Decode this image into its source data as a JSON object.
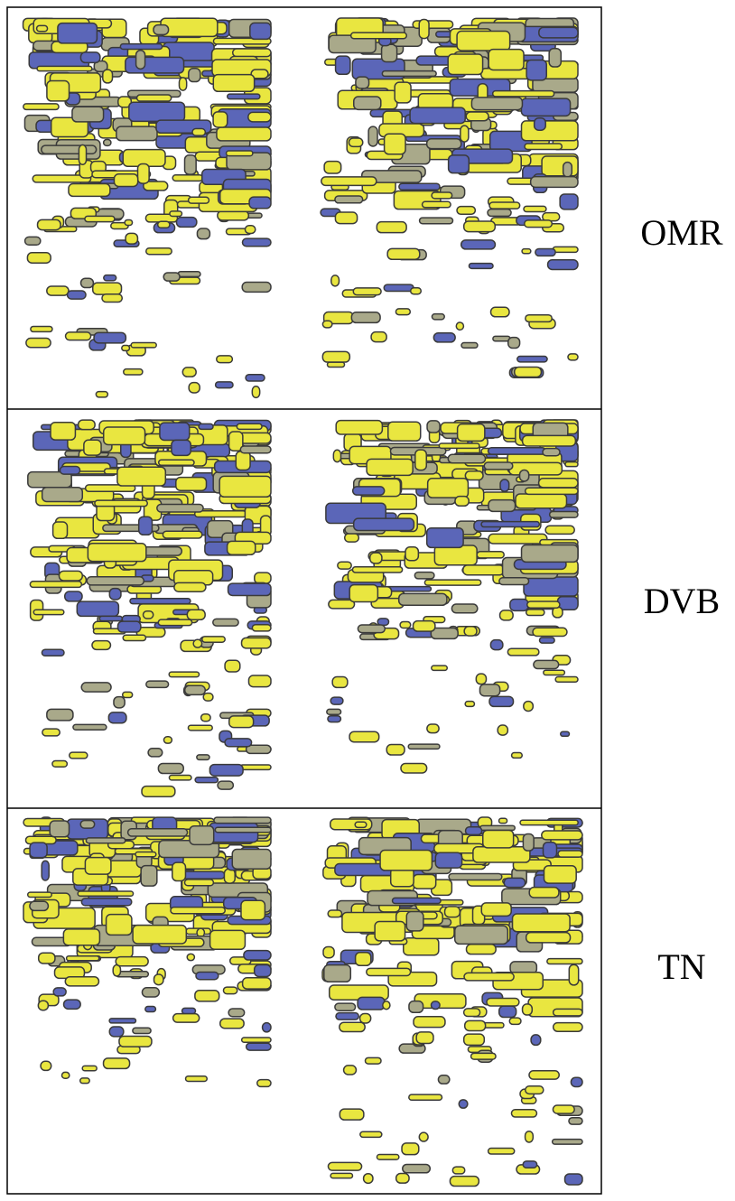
{
  "rows": [
    {
      "label": "OMR"
    },
    {
      "label": "DVB"
    },
    {
      "label": "TN"
    }
  ]
}
